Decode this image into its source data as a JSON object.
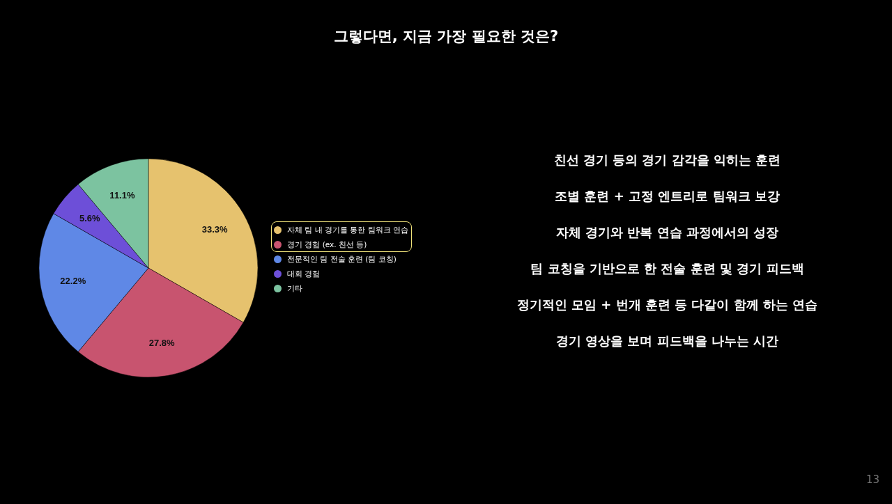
{
  "chart_data": {
    "type": "pie",
    "title": "그렇다면, 지금 가장 필요한 것은?",
    "categories": [
      "자체 팀 내 경기를 통한 팀워크 연습",
      "경기 경험 (ex. 친선 등)",
      "전문적인 팀 전술 훈련 (팀 코칭)",
      "대회 경험",
      "기타"
    ],
    "values": [
      33.3,
      27.8,
      22.2,
      5.6,
      11.1
    ],
    "colors": [
      "#e6c26e",
      "#c8546f",
      "#5f88e6",
      "#6d4fd8",
      "#7cc3a0"
    ],
    "value_labels": [
      "33.3%",
      "27.8%",
      "22.2%",
      "5.6%",
      "11.1%"
    ],
    "legend": "right",
    "annotations": [
      "친선 경기 등의 경기 감각을 익히는 훈련",
      "조별 훈련 + 고정 엔트리로 팀워크 보강",
      "자체 경기와 반복 연습 과정에서의 성장",
      "팀 코칭을 기반으로 한 전술 훈련 및 경기 피드백",
      "정기적인 모임 + 번개 훈련 등 다같이 함께 하는 연습",
      "경기 영상을 보며 피드백을 나누는 시간",
      "13"
    ]
  }
}
